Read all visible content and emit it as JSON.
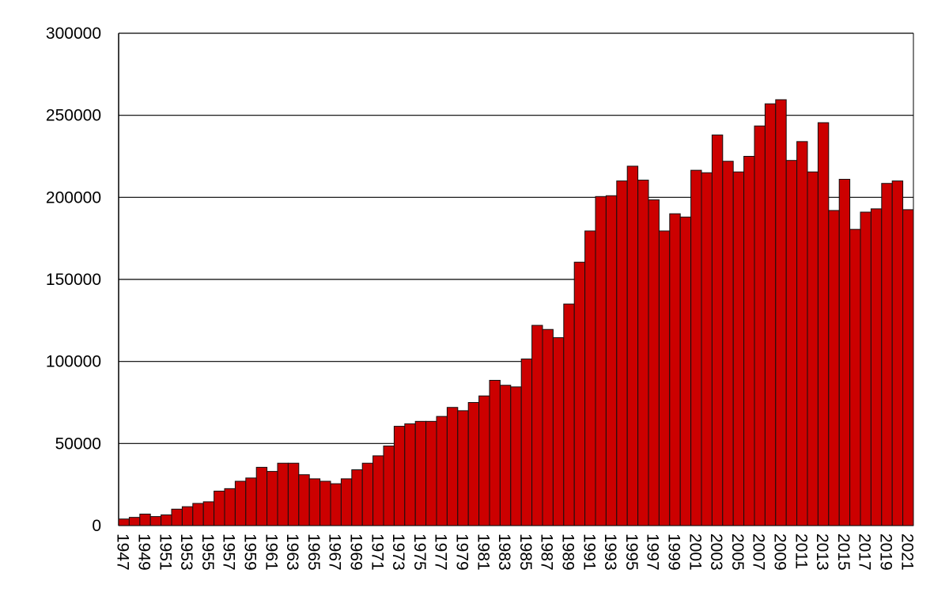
{
  "chart_data": {
    "type": "bar",
    "categories": [
      "1947",
      null,
      "1949",
      null,
      "1951",
      null,
      "1953",
      null,
      "1955",
      null,
      "1957",
      null,
      "1959",
      null,
      "1961",
      null,
      "1963",
      null,
      "1965",
      null,
      "1967",
      null,
      "1969",
      null,
      "1971",
      null,
      "1973",
      null,
      "1975",
      null,
      "1977",
      null,
      "1979",
      null,
      "1981",
      null,
      "1983",
      null,
      "1985",
      null,
      "1987",
      null,
      "1989",
      null,
      "1991",
      null,
      "1993",
      null,
      "1995",
      null,
      "1997",
      null,
      "1999",
      null,
      "2001",
      null,
      "2003",
      null,
      "2005",
      null,
      "2007",
      null,
      "2009",
      null,
      "2011",
      null,
      "2013",
      null,
      "2015",
      null,
      "2017",
      null,
      "2019",
      null,
      "2021"
    ],
    "values": [
      4000,
      5000,
      7000,
      5500,
      6500,
      10000,
      11500,
      13500,
      14500,
      21000,
      22500,
      27000,
      29000,
      35500,
      33000,
      38000,
      38000,
      31000,
      28500,
      27000,
      25500,
      28500,
      34000,
      38000,
      42500,
      48500,
      60500,
      62000,
      63500,
      63500,
      66500,
      72000,
      70000,
      75000,
      79000,
      88500,
      85500,
      84500,
      101500,
      122000,
      119500,
      114500,
      135000,
      160500,
      179500,
      200500,
      201000,
      210000,
      219000,
      210500,
      198500,
      179500,
      190000,
      188000,
      216500,
      215000,
      238000,
      222000,
      215500,
      225000,
      243500,
      257000,
      259500,
      222500,
      234000,
      215500,
      245500,
      192000,
      211000,
      180500,
      191000,
      193000,
      208500,
      210000,
      192500
    ],
    "color": "#cc0000",
    "ylim": [
      0,
      300000
    ],
    "yticks": [
      0,
      50000,
      100000,
      150000,
      200000,
      250000,
      300000
    ],
    "grid": true
  }
}
